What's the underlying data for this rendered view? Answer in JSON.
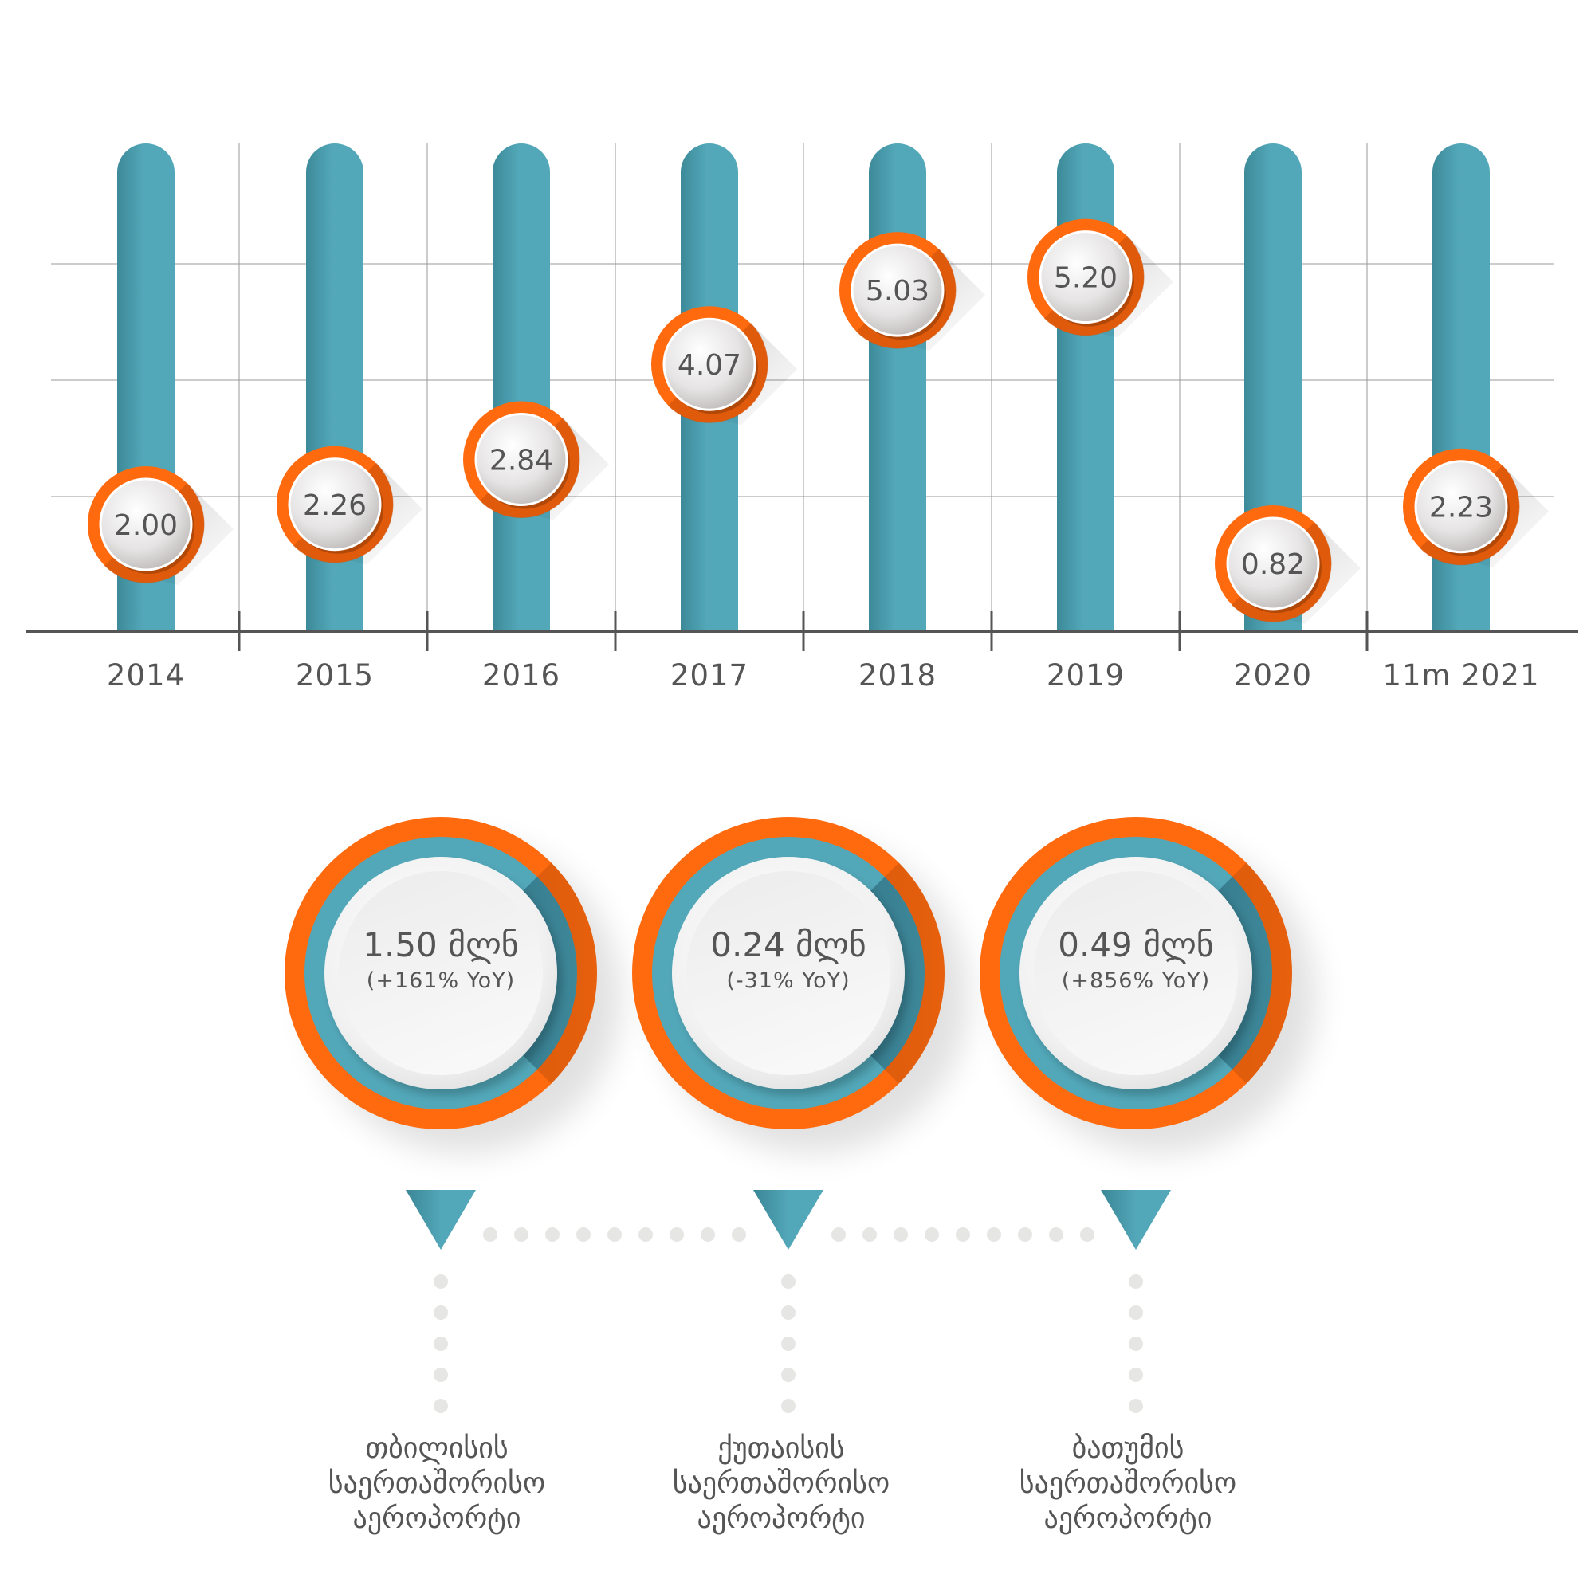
{
  "chart_data": {
    "type": "bar",
    "categories": [
      "2014",
      "2015",
      "2016",
      "2017",
      "2018",
      "2019",
      "2020",
      "11m 2021"
    ],
    "values": [
      2.0,
      2.26,
      2.84,
      4.07,
      5.03,
      5.2,
      0.82,
      2.23
    ],
    "value_labels": [
      "2.00",
      "2.26",
      "2.84",
      "4.07",
      "5.03",
      "5.20",
      "0.82",
      "2.23"
    ],
    "title": "",
    "xlabel": "",
    "ylabel": "",
    "grid": true,
    "legend": "none"
  },
  "colors": {
    "bar": "#52a7b8",
    "marker_ring": "#ff6a0e",
    "text": "#555555",
    "dots": "#e6e6e4"
  },
  "airports": [
    {
      "value": "1.50 მლნ",
      "yoy": "(+161% YoY)",
      "name_lines": [
        "თბილისის",
        "საერთაშორისო",
        "აეროპორტი"
      ]
    },
    {
      "value": "0.24 მლნ",
      "yoy": "(-31% YoY)",
      "name_lines": [
        "ქუთაისის",
        "საერთაშორისო",
        "აეროპორტი"
      ]
    },
    {
      "value": "0.49 მლნ",
      "yoy": "(+856% YoY)",
      "name_lines": [
        "ბათუმის",
        "საერთაშორისო",
        "აეროპორტი"
      ]
    }
  ]
}
